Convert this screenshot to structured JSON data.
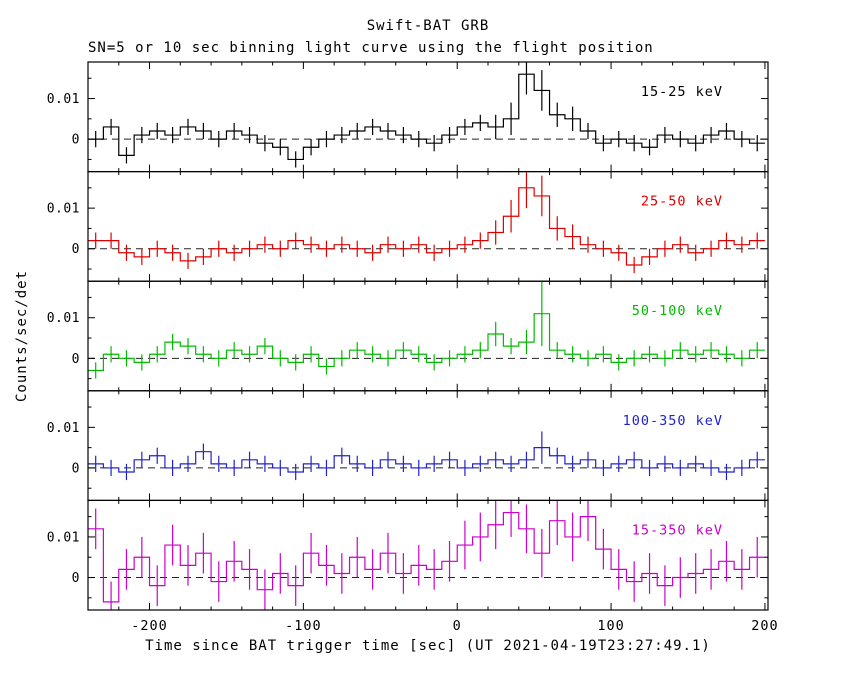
{
  "title": "Swift-BAT GRB",
  "subtitle": "SN=5 or 10 sec binning light curve using the flight position",
  "xlabel": "Time since BAT trigger time [sec] (UT 2021-04-19T23:27:49.1)",
  "ylabel": "Counts/sec/det",
  "axis": {
    "xlim": [
      -240,
      202
    ],
    "ylim": [
      -0.008,
      0.019
    ],
    "xticks": [
      -200,
      -100,
      0,
      100,
      200
    ],
    "xtick_labels": [
      "-200",
      "-100",
      "0",
      "100",
      "200"
    ],
    "yticks": [
      0,
      0.01
    ],
    "ytick_labels": [
      "0",
      "0.01"
    ],
    "frame_color": "#000000",
    "zero_line_style": "dashed",
    "grid": false
  },
  "chart_data": {
    "type": "line",
    "style": "histogram-step-with-errorbars",
    "title": "Swift-BAT GRB",
    "subtitle": "SN=5 or 10 sec binning light curve using the flight position",
    "xlabel": "Time since BAT trigger time [sec] (UT 2021-04-19T23:27:49.1)",
    "ylabel": "Counts/sec/det",
    "xlim": [
      -240,
      202
    ],
    "ylim": [
      -0.008,
      0.019
    ],
    "legend_position": "inside-top-right-per-panel",
    "bin_width_sec": 10,
    "x": [
      -235,
      -225,
      -215,
      -205,
      -195,
      -185,
      -175,
      -165,
      -155,
      -145,
      -135,
      -125,
      -115,
      -105,
      -95,
      -85,
      -75,
      -65,
      -55,
      -45,
      -35,
      -25,
      -15,
      -5,
      5,
      15,
      25,
      35,
      45,
      55,
      65,
      75,
      85,
      95,
      105,
      115,
      125,
      135,
      145,
      155,
      165,
      175,
      185,
      195
    ],
    "series": [
      {
        "name": "15-25 keV",
        "color": "#000000",
        "values": [
          0.0,
          0.003,
          -0.004,
          0.001,
          0.002,
          0.001,
          0.003,
          0.002,
          0.0,
          0.002,
          0.001,
          -0.001,
          -0.002,
          -0.005,
          -0.002,
          0.0,
          0.001,
          0.002,
          0.003,
          0.002,
          0.001,
          0.0,
          -0.001,
          0.001,
          0.003,
          0.004,
          0.003,
          0.005,
          0.016,
          0.012,
          0.006,
          0.005,
          0.002,
          -0.001,
          0.0,
          -0.001,
          -0.002,
          0.001,
          0.0,
          -0.001,
          0.001,
          0.002,
          0.0,
          -0.001
        ],
        "errors": [
          0.002,
          0.002,
          0.002,
          0.002,
          0.002,
          0.002,
          0.002,
          0.002,
          0.002,
          0.002,
          0.002,
          0.002,
          0.002,
          0.002,
          0.002,
          0.002,
          0.002,
          0.002,
          0.002,
          0.002,
          0.002,
          0.002,
          0.002,
          0.002,
          0.002,
          0.002,
          0.003,
          0.004,
          0.005,
          0.005,
          0.003,
          0.003,
          0.002,
          0.002,
          0.002,
          0.002,
          0.002,
          0.002,
          0.002,
          0.002,
          0.002,
          0.002,
          0.002,
          0.002
        ]
      },
      {
        "name": "25-50 keV",
        "color": "#dd0000",
        "values": [
          0.002,
          0.002,
          -0.001,
          -0.002,
          0.0,
          -0.001,
          -0.003,
          -0.002,
          0.0,
          -0.001,
          0.0,
          0.001,
          0.0,
          0.002,
          0.001,
          0.0,
          0.001,
          0.0,
          -0.001,
          0.001,
          0.0,
          0.001,
          -0.001,
          0.0,
          0.001,
          0.002,
          0.004,
          0.008,
          0.015,
          0.013,
          0.005,
          0.003,
          0.001,
          0.0,
          -0.001,
          -0.004,
          -0.002,
          0.0,
          0.001,
          -0.001,
          0.0,
          0.002,
          0.001,
          0.002
        ],
        "errors": [
          0.002,
          0.002,
          0.002,
          0.002,
          0.002,
          0.002,
          0.002,
          0.002,
          0.002,
          0.002,
          0.002,
          0.002,
          0.002,
          0.002,
          0.002,
          0.002,
          0.002,
          0.002,
          0.002,
          0.002,
          0.002,
          0.002,
          0.002,
          0.002,
          0.002,
          0.002,
          0.003,
          0.004,
          0.005,
          0.005,
          0.003,
          0.003,
          0.002,
          0.002,
          0.002,
          0.002,
          0.002,
          0.002,
          0.002,
          0.002,
          0.002,
          0.002,
          0.002,
          0.002
        ]
      },
      {
        "name": "50-100 keV",
        "color": "#00bb00",
        "values": [
          -0.003,
          0.001,
          0.0,
          -0.001,
          0.001,
          0.004,
          0.003,
          0.001,
          0.0,
          0.002,
          0.001,
          0.003,
          0.0,
          -0.001,
          0.001,
          -0.002,
          0.0,
          0.002,
          0.001,
          0.0,
          0.002,
          0.001,
          -0.001,
          0.0,
          0.001,
          0.002,
          0.006,
          0.003,
          0.004,
          0.011,
          0.002,
          0.001,
          0.0,
          0.001,
          -0.001,
          0.0,
          0.001,
          0.0,
          0.002,
          0.001,
          0.002,
          0.001,
          0.0,
          0.002
        ],
        "errors": [
          0.002,
          0.002,
          0.002,
          0.002,
          0.002,
          0.002,
          0.002,
          0.002,
          0.002,
          0.002,
          0.002,
          0.002,
          0.002,
          0.002,
          0.002,
          0.002,
          0.002,
          0.002,
          0.002,
          0.002,
          0.002,
          0.002,
          0.002,
          0.002,
          0.002,
          0.002,
          0.003,
          0.002,
          0.003,
          0.008,
          0.002,
          0.002,
          0.002,
          0.002,
          0.002,
          0.002,
          0.002,
          0.002,
          0.002,
          0.002,
          0.002,
          0.002,
          0.002,
          0.002
        ]
      },
      {
        "name": "100-350 keV",
        "color": "#2222cc",
        "values": [
          0.001,
          0.0,
          -0.001,
          0.002,
          0.003,
          0.0,
          0.001,
          0.004,
          0.001,
          0.0,
          0.002,
          0.001,
          0.0,
          -0.001,
          0.001,
          0.0,
          0.003,
          0.001,
          0.0,
          0.002,
          0.001,
          0.0,
          0.001,
          0.002,
          0.0,
          0.001,
          0.002,
          0.001,
          0.002,
          0.005,
          0.003,
          0.001,
          0.002,
          0.0,
          0.001,
          0.002,
          0.0,
          0.001,
          0.0,
          0.001,
          0.0,
          -0.001,
          0.0,
          0.002
        ],
        "errors": [
          0.002,
          0.002,
          0.002,
          0.002,
          0.002,
          0.002,
          0.002,
          0.002,
          0.002,
          0.002,
          0.002,
          0.002,
          0.002,
          0.002,
          0.002,
          0.002,
          0.002,
          0.002,
          0.002,
          0.002,
          0.002,
          0.002,
          0.002,
          0.002,
          0.002,
          0.002,
          0.002,
          0.002,
          0.002,
          0.004,
          0.002,
          0.002,
          0.002,
          0.002,
          0.002,
          0.002,
          0.002,
          0.002,
          0.002,
          0.002,
          0.002,
          0.002,
          0.002,
          0.002
        ]
      },
      {
        "name": "15-350 keV",
        "color": "#cc00cc",
        "values": [
          0.012,
          -0.006,
          0.002,
          0.005,
          -0.002,
          0.008,
          0.003,
          0.006,
          -0.001,
          0.004,
          0.002,
          -0.003,
          0.001,
          -0.002,
          0.006,
          0.003,
          0.001,
          0.005,
          0.002,
          0.006,
          0.001,
          0.003,
          0.002,
          0.004,
          0.008,
          0.01,
          0.013,
          0.016,
          0.012,
          0.006,
          0.014,
          0.01,
          0.015,
          0.007,
          0.002,
          -0.001,
          0.001,
          -0.002,
          0.0,
          0.001,
          0.002,
          0.004,
          0.002,
          0.005
        ],
        "errors": [
          0.005,
          0.005,
          0.005,
          0.005,
          0.005,
          0.005,
          0.005,
          0.005,
          0.005,
          0.005,
          0.005,
          0.005,
          0.005,
          0.005,
          0.005,
          0.005,
          0.005,
          0.005,
          0.005,
          0.005,
          0.005,
          0.005,
          0.005,
          0.005,
          0.006,
          0.006,
          0.006,
          0.006,
          0.006,
          0.006,
          0.006,
          0.006,
          0.006,
          0.005,
          0.005,
          0.005,
          0.005,
          0.005,
          0.005,
          0.005,
          0.005,
          0.005,
          0.005,
          0.005
        ]
      }
    ]
  }
}
